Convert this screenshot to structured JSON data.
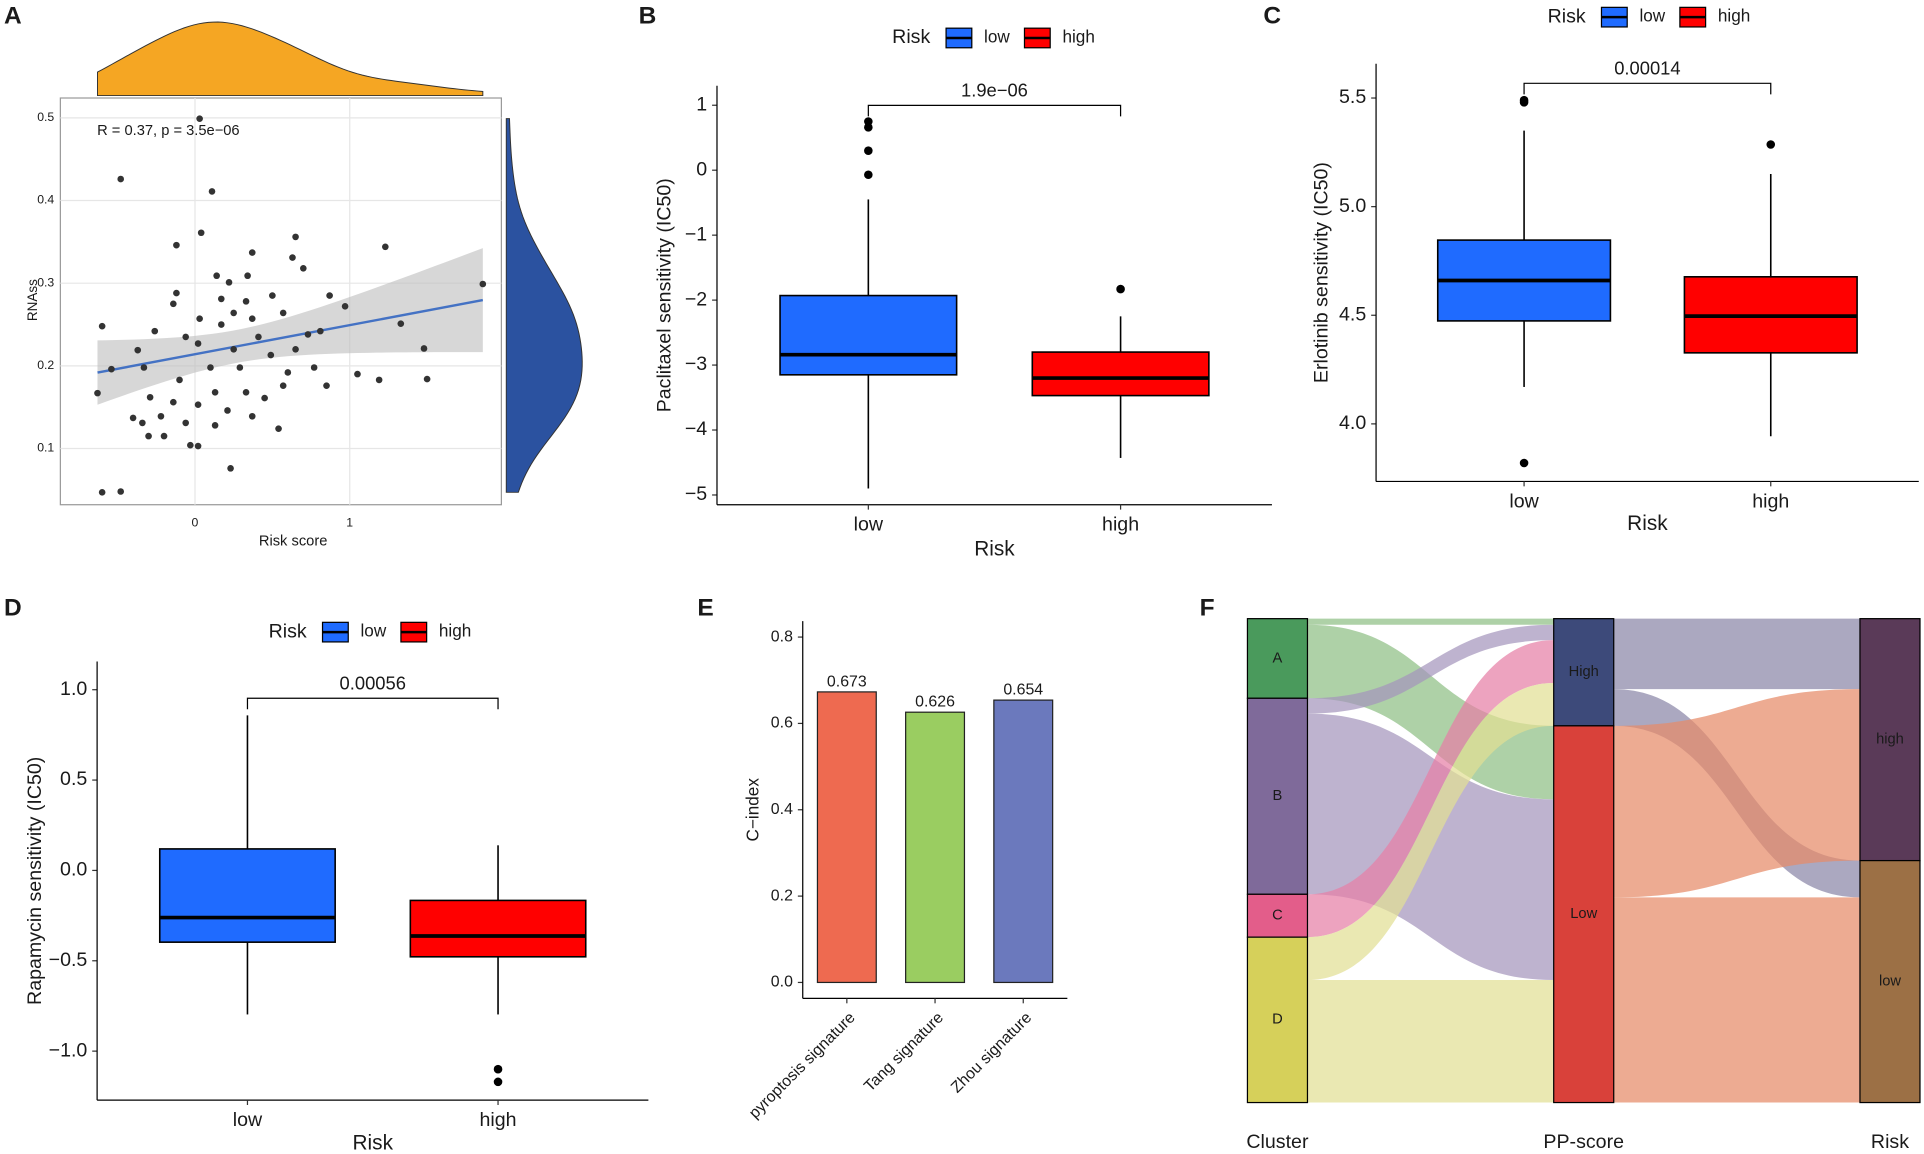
{
  "chart_data": [
    {
      "type": "scatter",
      "panel": "A",
      "annotation": "R = 0.37, p = 3.5e−06",
      "xlabel": "Risk score",
      "ylabel": "RNAss",
      "x": [
        0.03,
        -0.48,
        0.11,
        0.04,
        0.65,
        0.37,
        -0.12,
        1.23,
        0.14,
        0.22,
        0.63,
        0.7,
        0.34,
        -0.12,
        0.87,
        0.17,
        0.33,
        0.5,
        0.57,
        0.03,
        1.33,
        1.48,
        1.19,
        1.5,
        -0.6,
        -0.37,
        -0.33,
        -0.54,
        -0.63,
        -0.29,
        -0.4,
        -0.3,
        -0.2,
        -0.03,
        0.02,
        0.23,
        -0.6,
        -0.48,
        0.25,
        0.41,
        0.73,
        0.85,
        1.05,
        0.6,
        0.37,
        0.54,
        0.13,
        0.02,
        -0.14,
        -0.1,
        0.1,
        0.29,
        0.49,
        0.65,
        0.81,
        0.97,
        0.45,
        0.21,
        -0.22,
        -0.34,
        -0.06,
        0.13,
        0.33,
        0.57,
        0.77,
        0.02,
        0.17,
        0.37,
        -0.26,
        -0.06,
        1.86,
        -0.14,
        0.25
      ],
      "y": [
        0.499,
        0.426,
        0.411,
        0.361,
        0.356,
        0.337,
        0.346,
        0.344,
        0.309,
        0.301,
        0.331,
        0.318,
        0.309,
        0.288,
        0.285,
        0.281,
        0.278,
        0.285,
        0.264,
        0.257,
        0.251,
        0.221,
        0.183,
        0.184,
        0.248,
        0.219,
        0.198,
        0.196,
        0.167,
        0.162,
        0.137,
        0.115,
        0.115,
        0.104,
        0.103,
        0.076,
        0.047,
        0.048,
        0.22,
        0.235,
        0.238,
        0.176,
        0.19,
        0.192,
        0.139,
        0.124,
        0.168,
        0.153,
        0.156,
        0.183,
        0.198,
        0.198,
        0.213,
        0.22,
        0.242,
        0.272,
        0.161,
        0.146,
        0.139,
        0.131,
        0.131,
        0.128,
        0.168,
        0.176,
        0.198,
        0.227,
        0.25,
        0.257,
        0.242,
        0.235,
        0.299,
        0.275,
        0.264
      ],
      "color": "#333333",
      "fit_color": "#4472c4",
      "top_density_color": "#f5a623",
      "right_density_color": "#2b52a0",
      "xlim": [
        -0.87,
        1.98
      ],
      "xticks": [
        0,
        1
      ],
      "ylim": [
        0.032,
        0.524
      ],
      "yticks": [
        0.1,
        0.2,
        0.3,
        0.4,
        0.5
      ],
      "grid": true
    },
    {
      "type": "box",
      "panel": "B",
      "legend_title": "Risk",
      "xlabel": "Risk",
      "ylabel": "Paclitaxel sensitivity (IC50)",
      "categories": [
        "low",
        "high"
      ],
      "colors": [
        "#1f6bff",
        "#ff0000"
      ],
      "boxes": [
        {
          "min": -4.9,
          "q1": -3.15,
          "median": -2.84,
          "q3": -1.93,
          "max": -0.45,
          "outliers": [
            0.75,
            0.66,
            0.3,
            -0.07
          ]
        },
        {
          "min": -4.43,
          "q1": -3.47,
          "median": -3.2,
          "q3": -2.8,
          "max": -2.25,
          "outliers": [
            -1.83
          ]
        }
      ],
      "p_label": "1.9e−06",
      "ylim": [
        -5.15,
        1.3
      ],
      "yticks": [
        1,
        0,
        {
          "value": -1,
          "label": "−1"
        },
        {
          "value": -2,
          "label": "−2"
        },
        {
          "value": -3,
          "label": "−3"
        },
        {
          "value": -4,
          "label": "−4"
        },
        {
          "value": -5,
          "label": "−5"
        }
      ]
    },
    {
      "type": "box",
      "panel": "C",
      "legend_title": "Risk",
      "xlabel": "Risk",
      "ylabel": "Erlotinib sensitivity (IC50)",
      "categories": [
        "low",
        "high"
      ],
      "colors": [
        "#1f6bff",
        "#ff0000"
      ],
      "boxes": [
        {
          "min": 4.17,
          "q1": 4.474,
          "median": 4.66,
          "q3": 4.846,
          "max": 5.35,
          "outliers": [
            5.49,
            5.48,
            3.82
          ]
        },
        {
          "min": 3.943,
          "q1": 4.327,
          "median": 4.496,
          "q3": 4.677,
          "max": 5.15,
          "outliers": [
            5.286
          ]
        }
      ],
      "p_label": "0.00014",
      "ylim": [
        3.735,
        5.658
      ],
      "yticks": [
        {
          "value": 4,
          "label": "4.0"
        },
        4.5,
        {
          "value": 5,
          "label": "5.0"
        },
        5.5
      ]
    },
    {
      "type": "box",
      "panel": "D",
      "legend_title": "Risk",
      "xlabel": "Risk",
      "ylabel": "Rapamycin sensitivity (IC50)",
      "categories": [
        "low",
        "high"
      ],
      "colors": [
        "#1f6bff",
        "#ff0000"
      ],
      "boxes": [
        {
          "min": -0.797,
          "q1": -0.397,
          "median": -0.261,
          "q3": 0.119,
          "max": 0.858,
          "outliers": []
        },
        {
          "min": -0.797,
          "q1": -0.478,
          "median": -0.363,
          "q3": -0.166,
          "max": 0.139,
          "outliers": [
            -1.1,
            -1.17
          ]
        }
      ],
      "p_label": "0.00056",
      "ylim": [
        -1.271,
        1.156
      ],
      "yticks": [
        {
          "value": 1,
          "label": "1.0"
        },
        0.5,
        {
          "value": 0,
          "label": "0.0"
        },
        {
          "value": -0.5,
          "label": "−0.5"
        },
        {
          "value": -1,
          "label": "−1.0"
        }
      ]
    },
    {
      "type": "bar",
      "panel": "E",
      "ylabel": "C−index",
      "categories": [
        "pyroptosis signature",
        "Tang signature",
        "Zhou signature"
      ],
      "values": [
        0.673,
        0.626,
        0.654
      ],
      "colors": [
        "#ee6a50",
        "#9acd61",
        "#6b79bd"
      ],
      "ylim": [
        -0.037,
        0.837
      ],
      "yticks": [
        {
          "value": 0,
          "label": "0.0"
        },
        0.2,
        0.4,
        0.6,
        0.8
      ]
    },
    {
      "type": "alluvial",
      "panel": "F",
      "axes": [
        "Cluster",
        "PP-score",
        "Risk"
      ],
      "strata": [
        [
          "A",
          "B",
          "C",
          "D"
        ],
        [
          "High",
          "Low"
        ],
        [
          "high",
          "low"
        ]
      ],
      "strata_colors": [
        [
          "#4a9a5c",
          "#7f6a9a",
          "#e35d8a",
          "#d6d05a"
        ],
        [
          "#3d4a7a",
          "#d9413a"
        ],
        [
          "#5a3a58",
          "#9c7045"
        ]
      ],
      "flows": [
        {
          "from": "A",
          "to": "High",
          "value": 2,
          "color": "#8fbf85"
        },
        {
          "from": "A",
          "to": "Low",
          "value": 24,
          "color": "#8fbf85"
        },
        {
          "from": "B",
          "to": "High",
          "value": 5,
          "color": "#a596bd"
        },
        {
          "from": "B",
          "to": "Low",
          "value": 59,
          "color": "#a596bd"
        },
        {
          "from": "C",
          "to": "High",
          "value": 14,
          "color": "#e680a6"
        },
        {
          "from": "D",
          "to": "High",
          "value": 14,
          "color": "#e2df94"
        },
        {
          "from": "D",
          "to": "Low",
          "value": 40,
          "color": "#e2df94"
        },
        {
          "from": "High",
          "to": "high",
          "value": 23,
          "color": "#8a86a8"
        },
        {
          "from": "High",
          "to": "low",
          "value": 12,
          "color": "#8a86a8"
        },
        {
          "from": "Low",
          "to": "high",
          "value": 56,
          "color": "#e68a68"
        },
        {
          "from": "Low",
          "to": "low",
          "value": 67,
          "color": "#e68a68"
        }
      ]
    }
  ]
}
